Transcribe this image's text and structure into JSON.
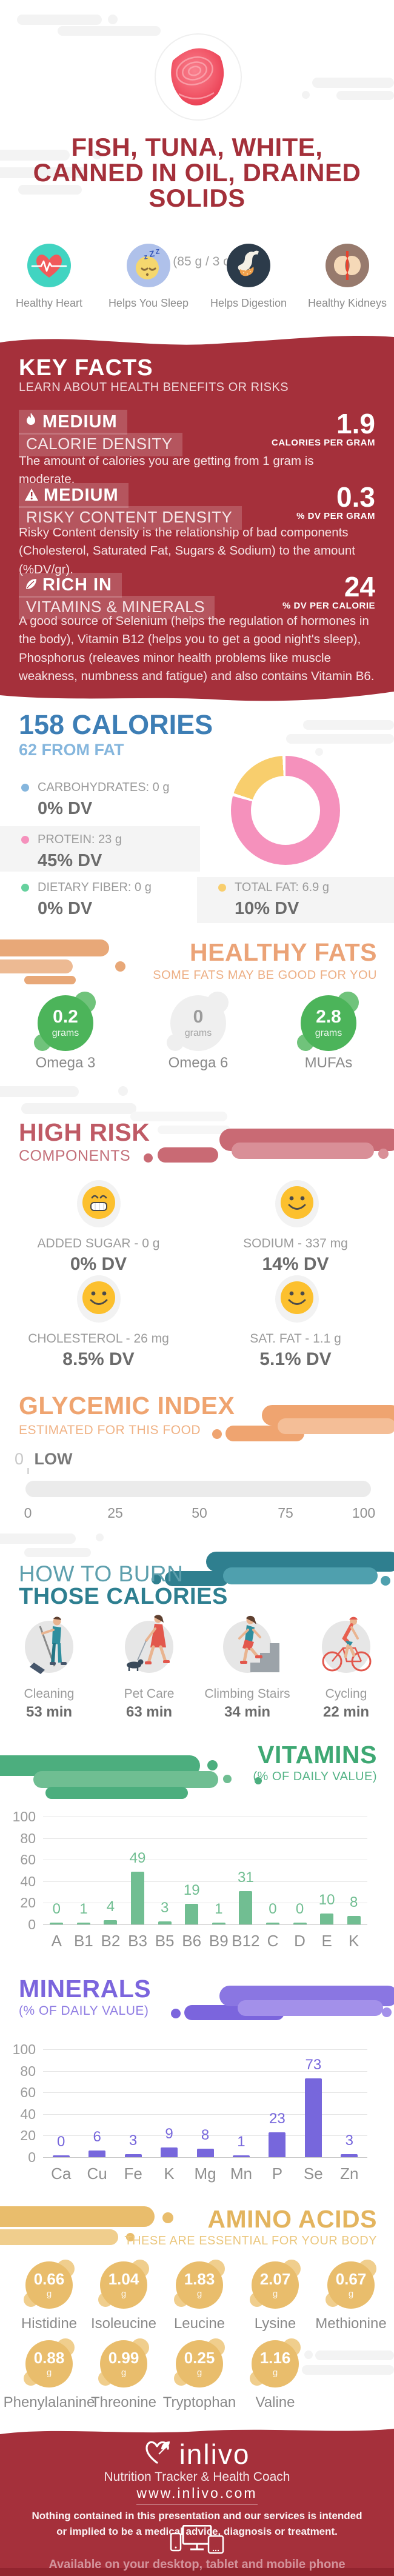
{
  "hero": {
    "title_lines": [
      "FISH, TUNA, WHITE,",
      "CANNED IN OIL, DRAINED",
      "SOLIDS"
    ],
    "serving": "Oz (85 g / 3 oz)",
    "benefits": [
      {
        "icon": "heart-ecg-icon",
        "label": "Healthy Heart"
      },
      {
        "icon": "sleep-face-icon",
        "label": "Helps You Sleep"
      },
      {
        "icon": "stomach-icon",
        "label": "Helps Digestion"
      },
      {
        "icon": "kidneys-icon",
        "label": "Healthy Kidneys"
      }
    ]
  },
  "key_facts": {
    "heading": "KEY FACTS",
    "subheading": "LEARN ABOUT HEALTH BENEFITS OR RISKS",
    "facts": [
      {
        "icon": "flame-icon",
        "level": "MEDIUM",
        "metric": "CALORIE DENSITY",
        "value": "1.9",
        "unit": "CALORIES PER GRAM",
        "desc": "The amount of calories you are getting from 1 gram is moderate."
      },
      {
        "icon": "warning-icon",
        "level": "MEDIUM",
        "metric": "RISKY CONTENT DENSITY",
        "value": "0.3",
        "unit": "% DV PER GRAM",
        "desc": "Risky Content density is the relationship of bad components (Cholesterol, Saturated Fat, Sugars & Sodium) to the amount (%DV/gr)."
      },
      {
        "icon": "leaf-icon",
        "level": "RICH IN",
        "metric": "VITAMINS & MINERALS",
        "value": "24",
        "unit": "% DV PER CALORIE",
        "desc": "A good source of Selenium (helps the regulation of hormones in the body), Vitamin B12 (helps you to get a good night's sleep), Phosphorus (releaves minor health problems like muscle weakness, numbness and fatigue) and also contains Vitamin B6."
      }
    ]
  },
  "calories": {
    "title": "158 CALORIES",
    "subtitle": "62 FROM FAT",
    "legend": [
      {
        "name": "CARBOHYDRATES: 0 g",
        "dv": "0% DV",
        "color": "#85B6DD"
      },
      {
        "name": "PROTEIN: 23 g",
        "dv": "45% DV",
        "color": "#F591BC"
      },
      {
        "name": "DIETARY FIBER: 0 g",
        "dv": "0% DV",
        "color": "#66D19E"
      },
      {
        "name": "TOTAL FAT: 6.9 g",
        "dv": "10% DV",
        "color": "#F8CE6D"
      }
    ],
    "donut": {
      "segments": [
        {
          "label": "Protein",
          "color": "#F591BC",
          "pct": 79.2
        },
        {
          "label": "Total Fat",
          "color": "#F8CE6D",
          "pct": 19.0
        }
      ]
    }
  },
  "healthy_fats": {
    "title": "HEALTHY FATS",
    "subtitle": "SOME FATS MAY BE GOOD FOR YOU",
    "title_color": "#EBA377",
    "items": [
      {
        "value": "0.2",
        "unit": "grams",
        "label": "Omega 3",
        "color": "#4CB45A",
        "text_color": "#FFFFFF"
      },
      {
        "value": "0",
        "unit": "grams",
        "label": "Omega 6",
        "color": "#EFEFEF",
        "text_color": "#9B9B9B"
      },
      {
        "value": "2.8",
        "unit": "grams",
        "label": "MUFAs",
        "color": "#4CB45A",
        "text_color": "#FFFFFF"
      }
    ]
  },
  "high_risk": {
    "title": "HIGH RISK",
    "subtitle": "COMPONENTS",
    "title_color": "#BF5A65",
    "items": [
      {
        "name": "ADDED SUGAR - 0 g",
        "dv": "0% DV",
        "face": "grin-emoji-icon"
      },
      {
        "name": "SODIUM - 337 mg",
        "dv": "14% DV",
        "face": "smile-emoji-icon"
      },
      {
        "name": "CHOLESTEROL - 26 mg",
        "dv": "8.5% DV",
        "face": "smile-emoji-icon"
      },
      {
        "name": "SAT. FAT - 1.1 g",
        "dv": "5.1% DV",
        "face": "smile-emoji-icon"
      }
    ]
  },
  "glycemic": {
    "title": "GLYCEMIC INDEX",
    "subtitle": "ESTIMATED FOR THIS FOOD",
    "title_color": "#EFA470",
    "value": "0",
    "label": "LOW",
    "ticks": [
      "0",
      "25",
      "50",
      "75",
      "100"
    ]
  },
  "burn": {
    "title_line1": "HOW TO BURN",
    "title_line2": "THOSE CALORIES",
    "activities": [
      {
        "icon": "cleaning-illustration",
        "label": "Cleaning",
        "time": "53 min"
      },
      {
        "icon": "pet-care-illustration",
        "label": "Pet Care",
        "time": "63 min"
      },
      {
        "icon": "climbing-stairs-illustration",
        "label": "Climbing Stairs",
        "time": "34 min"
      },
      {
        "icon": "cycling-illustration",
        "label": "Cycling",
        "time": "22 min"
      }
    ]
  },
  "chart_data": [
    {
      "type": "bar",
      "title": "VITAMINS",
      "subtitle": "(% OF DAILY VALUE)",
      "categories": [
        "A",
        "B1",
        "B2",
        "B3",
        "B5",
        "B6",
        "B9",
        "B12",
        "C",
        "D",
        "E",
        "K"
      ],
      "values": [
        0,
        1,
        4,
        49,
        3,
        19,
        1,
        31,
        0,
        0,
        10,
        8
      ],
      "ylim": [
        0,
        100
      ],
      "yticks": [
        0,
        20,
        40,
        60,
        80,
        100
      ],
      "bar_color": "#71BE92",
      "title_color": "#3EA873",
      "grid": true,
      "legend": "none"
    },
    {
      "type": "bar",
      "title": "MINERALS",
      "subtitle": "(% OF DAILY VALUE)",
      "categories": [
        "Ca",
        "Cu",
        "Fe",
        "K",
        "Mg",
        "Mn",
        "P",
        "Se",
        "Zn"
      ],
      "values": [
        0,
        6,
        3,
        9,
        8,
        1,
        23,
        73,
        3
      ],
      "ylim": [
        0,
        100
      ],
      "yticks": [
        0,
        20,
        40,
        60,
        80,
        100
      ],
      "bar_color": "#7767DC",
      "title_color": "#7B65DD",
      "grid": true,
      "legend": "none"
    }
  ],
  "amino_acids": {
    "title": "AMINO ACIDS",
    "subtitle": "THESE ARE ESSENTIAL FOR YOUR BODY",
    "title_color": "#E3B45E",
    "blob_color": "#E9BD6C",
    "items": [
      {
        "value": "0.66",
        "unit": "g",
        "label": "Histidine"
      },
      {
        "value": "1.04",
        "unit": "g",
        "label": "Isoleucine"
      },
      {
        "value": "1.83",
        "unit": "g",
        "label": "Leucine"
      },
      {
        "value": "2.07",
        "unit": "g",
        "label": "Lysine"
      },
      {
        "value": "0.67",
        "unit": "g",
        "label": "Methionine"
      },
      {
        "value": "0.88",
        "unit": "g",
        "label": "Phenylalanine"
      },
      {
        "value": "0.99",
        "unit": "g",
        "label": "Threonine"
      },
      {
        "value": "0.25",
        "unit": "g",
        "label": "Tryptophan"
      },
      {
        "value": "1.16",
        "unit": "g",
        "label": "Valine"
      }
    ]
  },
  "footer": {
    "brand": "inlivo",
    "tagline": "Nutrition Tracker & Health Coach",
    "url": "www.inlivo.com",
    "disclaimer": "Nothing contained in this presentation and our services is intended or implied to be a medical advice, diagnosis or treatment.",
    "availability": "Available on your desktop, tablet and mobile phone"
  },
  "colors": {
    "brand_red": "#A5303B",
    "title_blue": "#3D7EB5",
    "teal_light": "#5D9FAD",
    "teal_dark": "#2E7F90"
  }
}
